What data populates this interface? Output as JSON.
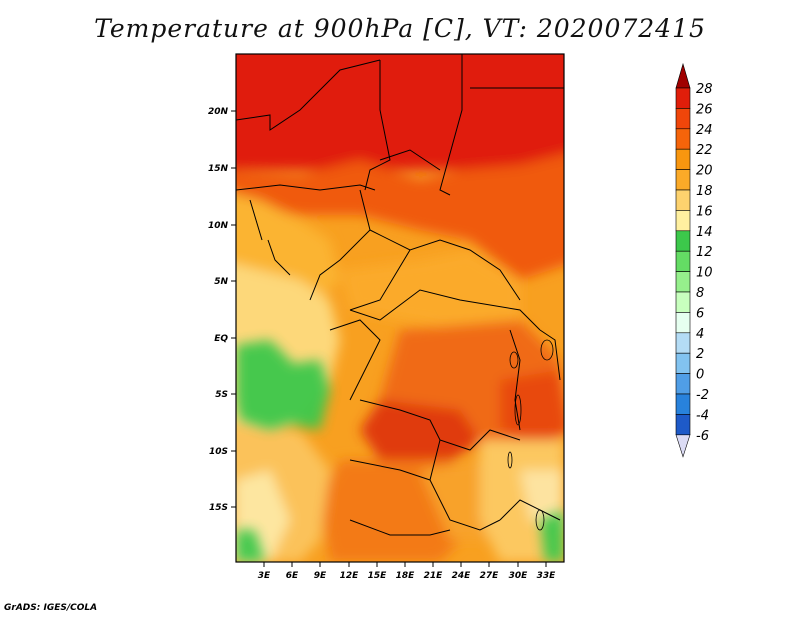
{
  "title": "Temperature at 900hPa [C], VT: 2020072415",
  "footer": "GrADS: IGES/COLA",
  "map": {
    "region": "Central Africa",
    "lon_range": [
      0,
      35
    ],
    "lat_range": [
      -20,
      25
    ],
    "lat_ticks": [
      "20N",
      "15N",
      "10N",
      "5N",
      "EQ",
      "5S",
      "10S",
      "15S"
    ],
    "lon_ticks": [
      "3E",
      "6E",
      "9E",
      "12E",
      "15E",
      "18E",
      "21E",
      "24E",
      "27E",
      "30E",
      "33E"
    ]
  },
  "colorbar": {
    "labels": [
      "28",
      "26",
      "24",
      "22",
      "20",
      "18",
      "16",
      "14",
      "12",
      "10",
      "8",
      "6",
      "4",
      "2",
      "0",
      "-2",
      "-4",
      "-6"
    ],
    "colors": [
      "#e01e0a",
      "#f0460a",
      "#f5640a",
      "#f8960f",
      "#fbaa28",
      "#fdd26e",
      "#fff0a0",
      "#3cc84b",
      "#64dc64",
      "#96f08c",
      "#c8ffbe",
      "#e6fff0",
      "#b4dcf5",
      "#82c3f0",
      "#509ee6",
      "#2882dc",
      "#1e5ac8",
      "#0a28a0",
      "#0a0a64",
      "#dcdcf5"
    ],
    "triangle_top_color": "#a00000",
    "triangle_bottom_color": "#dcdcf5"
  }
}
